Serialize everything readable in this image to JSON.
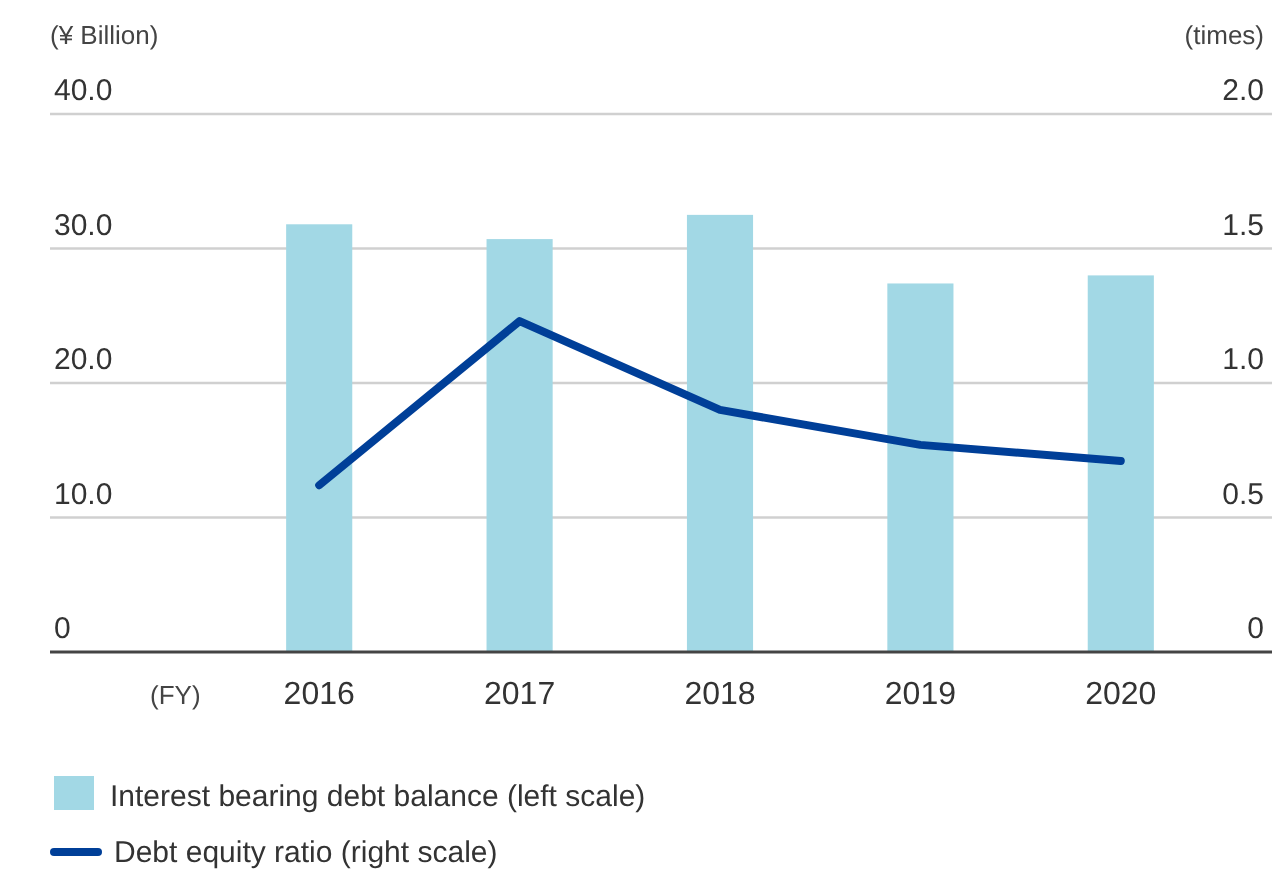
{
  "chart_data": {
    "type": "bar",
    "categories": [
      "2016",
      "2017",
      "2018",
      "2019",
      "2020"
    ],
    "xlabel": "(FY)",
    "ylabel": "(¥ Billion)",
    "y2label": "(times)",
    "series": [
      {
        "name": "Interest bearing debt balance (left scale)",
        "color": "#a2d8e5",
        "values": [
          31.8,
          30.7,
          32.5,
          27.4,
          28.0
        ]
      },
      {
        "name": "Debt equity ratio (right scale)",
        "type": "line",
        "axis": "y2",
        "color": "#003f98",
        "values": [
          0.62,
          1.23,
          0.9,
          0.77,
          0.71
        ]
      }
    ],
    "ylim": [
      0,
      40
    ],
    "yticks": [
      {
        "value": 0,
        "label": "0"
      },
      {
        "value": 10,
        "label": "10.0"
      },
      {
        "value": 20,
        "label": "20.0"
      },
      {
        "value": 30,
        "label": "30.0"
      },
      {
        "value": 40,
        "label": "40.0"
      }
    ],
    "y2lim": [
      0,
      2
    ],
    "y2ticks": [
      {
        "value": 0,
        "label": "0"
      },
      {
        "value": 0.5,
        "label": "0.5"
      },
      {
        "value": 1,
        "label": "1.0"
      },
      {
        "value": 1.5,
        "label": "1.5"
      },
      {
        "value": 2,
        "label": "2.0"
      }
    ],
    "grid": "y",
    "legend": "bottom",
    "marker": "none"
  }
}
